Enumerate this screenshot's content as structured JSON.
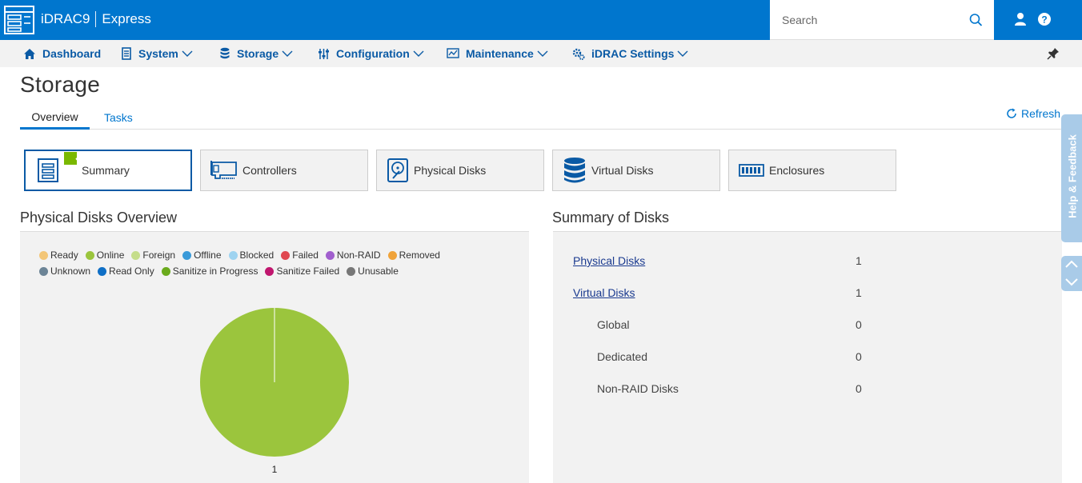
{
  "app": {
    "name": "iDRAC9",
    "edition": "Express"
  },
  "header": {
    "search_placeholder": "Search"
  },
  "nav": {
    "items": [
      {
        "label": "Dashboard"
      },
      {
        "label": "System"
      },
      {
        "label": "Storage"
      },
      {
        "label": "Configuration"
      },
      {
        "label": "Maintenance"
      },
      {
        "label": "iDRAC Settings"
      }
    ]
  },
  "page": {
    "title": "Storage"
  },
  "tabs": [
    {
      "label": "Overview"
    },
    {
      "label": "Tasks"
    }
  ],
  "refresh_label": "Refresh",
  "cards": [
    {
      "label": "Summary"
    },
    {
      "label": "Controllers"
    },
    {
      "label": "Physical Disks"
    },
    {
      "label": "Virtual Disks"
    },
    {
      "label": "Enclosures"
    }
  ],
  "overview": {
    "title": "Physical Disks Overview",
    "legend": [
      {
        "label": "Ready",
        "color": "#f3c677"
      },
      {
        "label": "Online",
        "color": "#9bc53d"
      },
      {
        "label": "Foreign",
        "color": "#c5dd8a"
      },
      {
        "label": "Offline",
        "color": "#3a9ad9"
      },
      {
        "label": "Blocked",
        "color": "#9ed3f0"
      },
      {
        "label": "Failed",
        "color": "#e04850"
      },
      {
        "label": "Non-RAID",
        "color": "#a15fce"
      },
      {
        "label": "Removed",
        "color": "#f0a33a"
      },
      {
        "label": "Unknown",
        "color": "#6c8496"
      },
      {
        "label": "Read Only",
        "color": "#0f6fc6"
      },
      {
        "label": "Sanitize in Progress",
        "color": "#6aaa1c"
      },
      {
        "label": "Sanitize Failed",
        "color": "#c0166e"
      },
      {
        "label": "Unusable",
        "color": "#777777"
      }
    ]
  },
  "chart_data": {
    "type": "pie",
    "categories": [
      "Online"
    ],
    "values": [
      1
    ],
    "colors": [
      "#9bc53d"
    ],
    "data_labels": [
      "1"
    ]
  },
  "summary": {
    "title": "Summary of Disks",
    "rows": [
      {
        "label": "Physical Disks",
        "value": "1"
      },
      {
        "label": "Virtual Disks",
        "value": "1"
      },
      {
        "label": "Global",
        "value": "0"
      },
      {
        "label": "Dedicated",
        "value": "0"
      },
      {
        "label": "Non-RAID Disks",
        "value": "0"
      }
    ]
  },
  "feedback_label": "Help & Feedback"
}
